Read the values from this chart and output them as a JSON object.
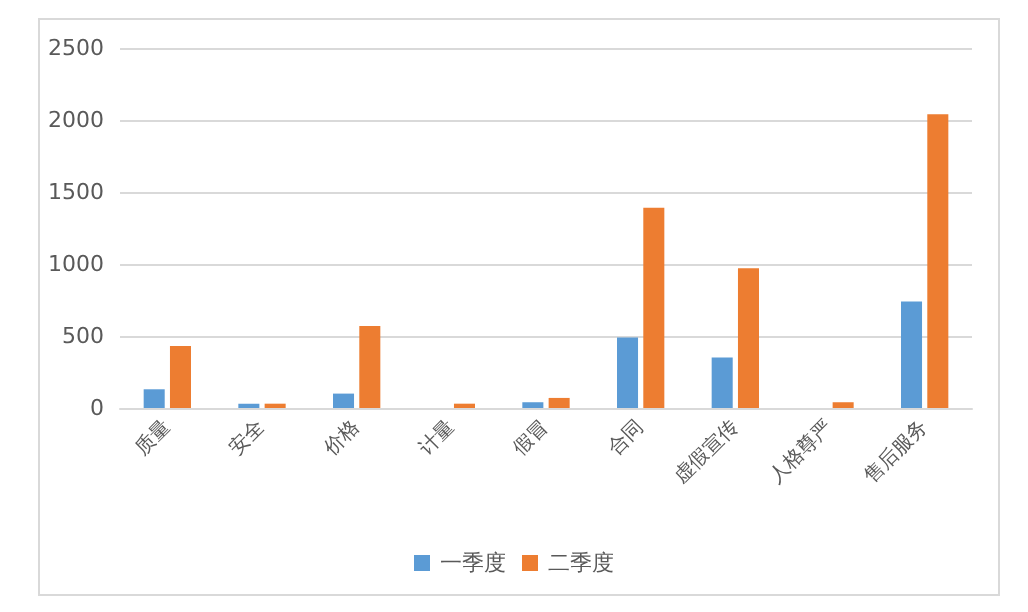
{
  "chart_data": {
    "type": "bar",
    "categories": [
      "质量",
      "安全",
      "价格",
      "计量",
      "假冒",
      "合同",
      "虚假宣传",
      "人格尊严",
      "售后服务"
    ],
    "series": [
      {
        "name": "一季度",
        "color": "#5b9bd5",
        "values": [
          130,
          30,
          100,
          0,
          40,
          490,
          350,
          0,
          740
        ]
      },
      {
        "name": "二季度",
        "color": "#ed7d31",
        "values": [
          430,
          30,
          570,
          30,
          70,
          1390,
          970,
          40,
          2040
        ]
      }
    ],
    "ylim": [
      0,
      2500
    ],
    "yticks": [
      0,
      500,
      1000,
      1500,
      2000,
      2500
    ],
    "grid": "y",
    "legend": "bottom"
  }
}
